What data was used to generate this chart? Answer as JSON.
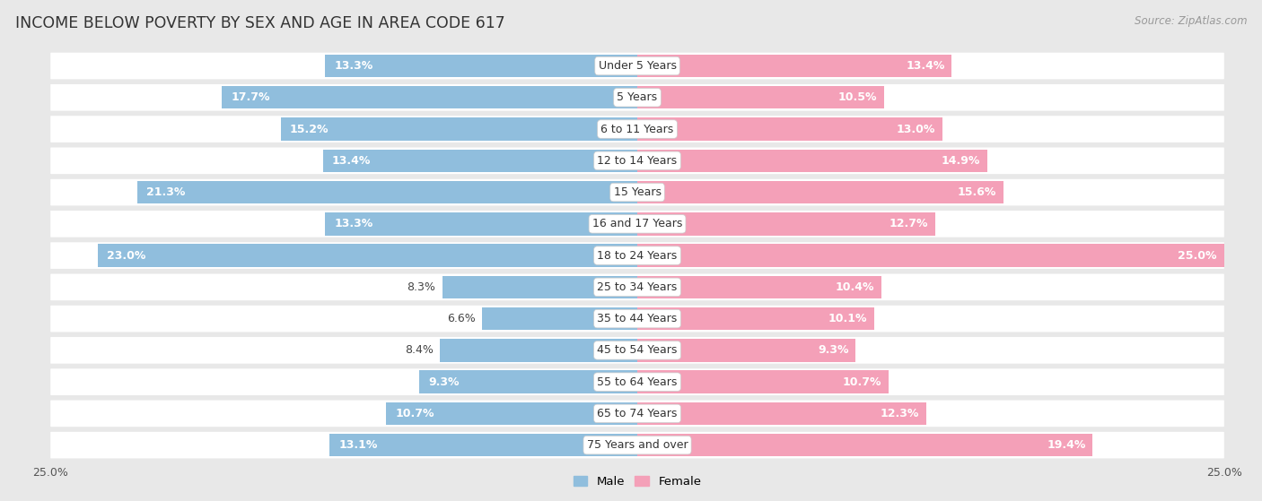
{
  "title": "INCOME BELOW POVERTY BY SEX AND AGE IN AREA CODE 617",
  "source": "Source: ZipAtlas.com",
  "categories": [
    "Under 5 Years",
    "5 Years",
    "6 to 11 Years",
    "12 to 14 Years",
    "15 Years",
    "16 and 17 Years",
    "18 to 24 Years",
    "25 to 34 Years",
    "35 to 44 Years",
    "45 to 54 Years",
    "55 to 64 Years",
    "65 to 74 Years",
    "75 Years and over"
  ],
  "male": [
    13.3,
    17.7,
    15.2,
    13.4,
    21.3,
    13.3,
    23.0,
    8.3,
    6.6,
    8.4,
    9.3,
    10.7,
    13.1
  ],
  "female": [
    13.4,
    10.5,
    13.0,
    14.9,
    15.6,
    12.7,
    25.0,
    10.4,
    10.1,
    9.3,
    10.7,
    12.3,
    19.4
  ],
  "male_color": "#90bedd",
  "female_color": "#f4a0b8",
  "background_color": "#e8e8e8",
  "row_bg_color": "#ffffff",
  "xlim": 25.0,
  "bar_height": 0.72,
  "title_fontsize": 12.5,
  "label_fontsize": 9,
  "category_fontsize": 9,
  "source_fontsize": 8.5
}
